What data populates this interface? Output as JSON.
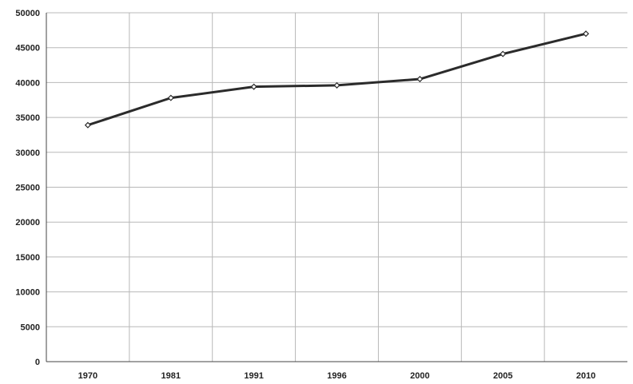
{
  "chart_data": {
    "type": "line",
    "title": "",
    "xlabel": "",
    "ylabel": "",
    "categories": [
      "1970",
      "1981",
      "1991",
      "1996",
      "2000",
      "2005",
      "2010"
    ],
    "series": [
      {
        "values": [
          33900,
          37800,
          39400,
          39600,
          40500,
          44100,
          47000
        ]
      }
    ],
    "ylim": [
      0,
      50000
    ],
    "yticks": [
      "0",
      "5000",
      "10000",
      "15000",
      "20000",
      "25000",
      "30000",
      "35000",
      "40000",
      "45000",
      "50000"
    ],
    "grid": true,
    "legend": "none",
    "colors": {
      "line": "#2b2b2b",
      "grid": "#b8b8b8",
      "marker_fill": "#ffffff"
    }
  }
}
